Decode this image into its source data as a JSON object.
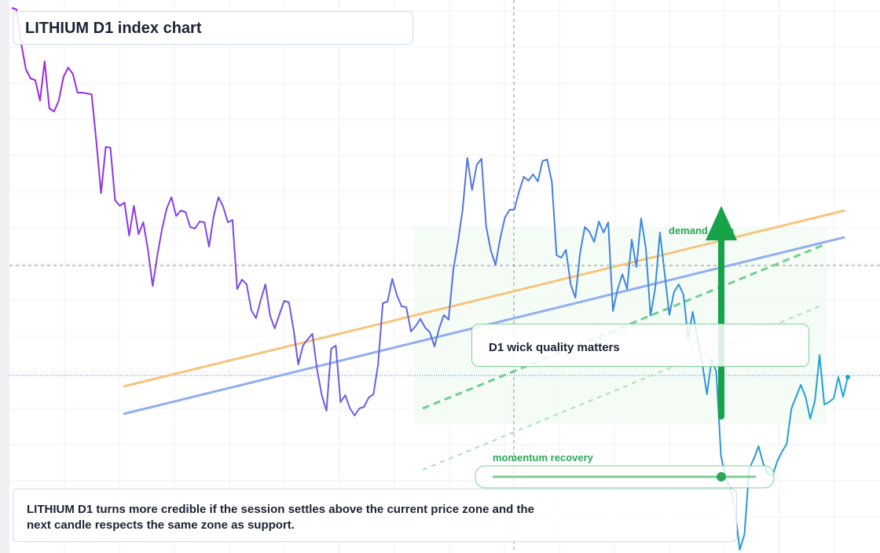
{
  "chart_data": {
    "type": "line",
    "title": "LITHIUM D1 index chart",
    "values": [
      694,
      692,
      649,
      616,
      604,
      602,
      576,
      626,
      566,
      562,
      576,
      606,
      618,
      610,
      586,
      586,
      585,
      584,
      524,
      458,
      517,
      516,
      449,
      442,
      446,
      404,
      442,
      406,
      421,
      386,
      340,
      379,
      413,
      439,
      453,
      429,
      436,
      434,
      415,
      413,
      422,
      421,
      390,
      429,
      453,
      441,
      421,
      424,
      336,
      348,
      342,
      309,
      299,
      322,
      342,
      302,
      286,
      304,
      321,
      319,
      284,
      240,
      264,
      272,
      279,
      234,
      201,
      181,
      260,
      264,
      192,
      201,
      184,
      175,
      184,
      186,
      198,
      202,
      240,
      318,
      320,
      349,
      328,
      314,
      313,
      282,
      289,
      298,
      287,
      281,
      263,
      286,
      303,
      297,
      360,
      396,
      437,
      503,
      462,
      494,
      502,
      416,
      385,
      367,
      401,
      427,
      437,
      437,
      460,
      479,
      474,
      482,
      473,
      499,
      501,
      472,
      379,
      376,
      386,
      342,
      325,
      382,
      415,
      409,
      396,
      422,
      408,
      421,
      308,
      336,
      355,
      336,
      399,
      364,
      426,
      388,
      302,
      337,
      408,
      356,
      303,
      332,
      342,
      329,
      274,
      307,
      272,
      242,
      202,
      246,
      231,
      124,
      94,
      84,
      54,
      4,
      24,
      107,
      120,
      136,
      114,
      101,
      99,
      117,
      129,
      139,
      184,
      199,
      214,
      199,
      171,
      194,
      252,
      189,
      192,
      197,
      224,
      199,
      224
    ],
    "line_colors": [
      "#a024e6",
      "#5a6ee6",
      "#1ba6d6"
    ],
    "ylim": [
      0,
      704
    ],
    "annotations": {
      "zone_label": "demand zone",
      "wick_note": "D1 wick quality matters",
      "momentum_label": "momentum recovery",
      "footnote": "LITHIUM D1 turns more credible if the session settles above the current price zone and the next candle respects the same zone as support."
    }
  }
}
